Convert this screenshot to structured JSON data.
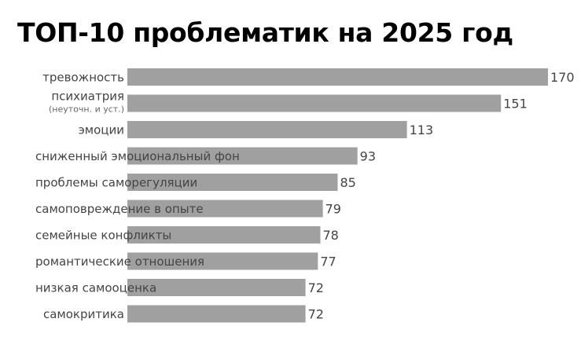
{
  "chart_data": {
    "type": "bar",
    "orientation": "horizontal",
    "title": "ТОП-10 проблематик на 2025 год",
    "categories": [
      "тревожность",
      "психиатрия",
      "эмоции",
      "сниженный эмоциональный фон",
      "проблемы саморегуляции",
      "самоповреждение в опыте",
      "семейные конфликты",
      "романтические отношения",
      "низкая самооценка",
      "самокритика"
    ],
    "category_notes": [
      "",
      "(неуточн. и уст.)",
      "",
      "",
      "",
      "",
      "",
      "",
      "",
      ""
    ],
    "values": [
      170,
      151,
      113,
      93,
      85,
      79,
      78,
      77,
      72,
      72
    ],
    "xlim": [
      0,
      170
    ],
    "grid": false,
    "legend": "none",
    "bar_color": "#a0a0a0",
    "label_color": "#444444",
    "title_color": "#000000"
  }
}
